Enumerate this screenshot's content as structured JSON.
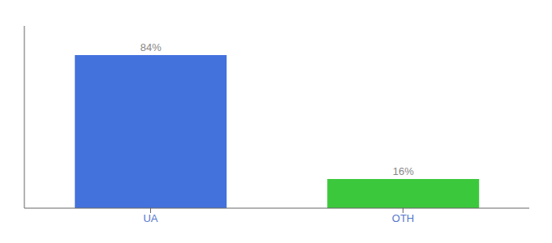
{
  "chart_data": {
    "type": "bar",
    "categories": [
      "UA",
      "OTH"
    ],
    "values": [
      84,
      16
    ],
    "value_labels": [
      "84%",
      "16%"
    ],
    "colors": [
      "#4472dd",
      "#3cc83c"
    ],
    "ylim": [
      0,
      100
    ],
    "data_labels": true,
    "tick_labels": "x",
    "grid": false
  }
}
